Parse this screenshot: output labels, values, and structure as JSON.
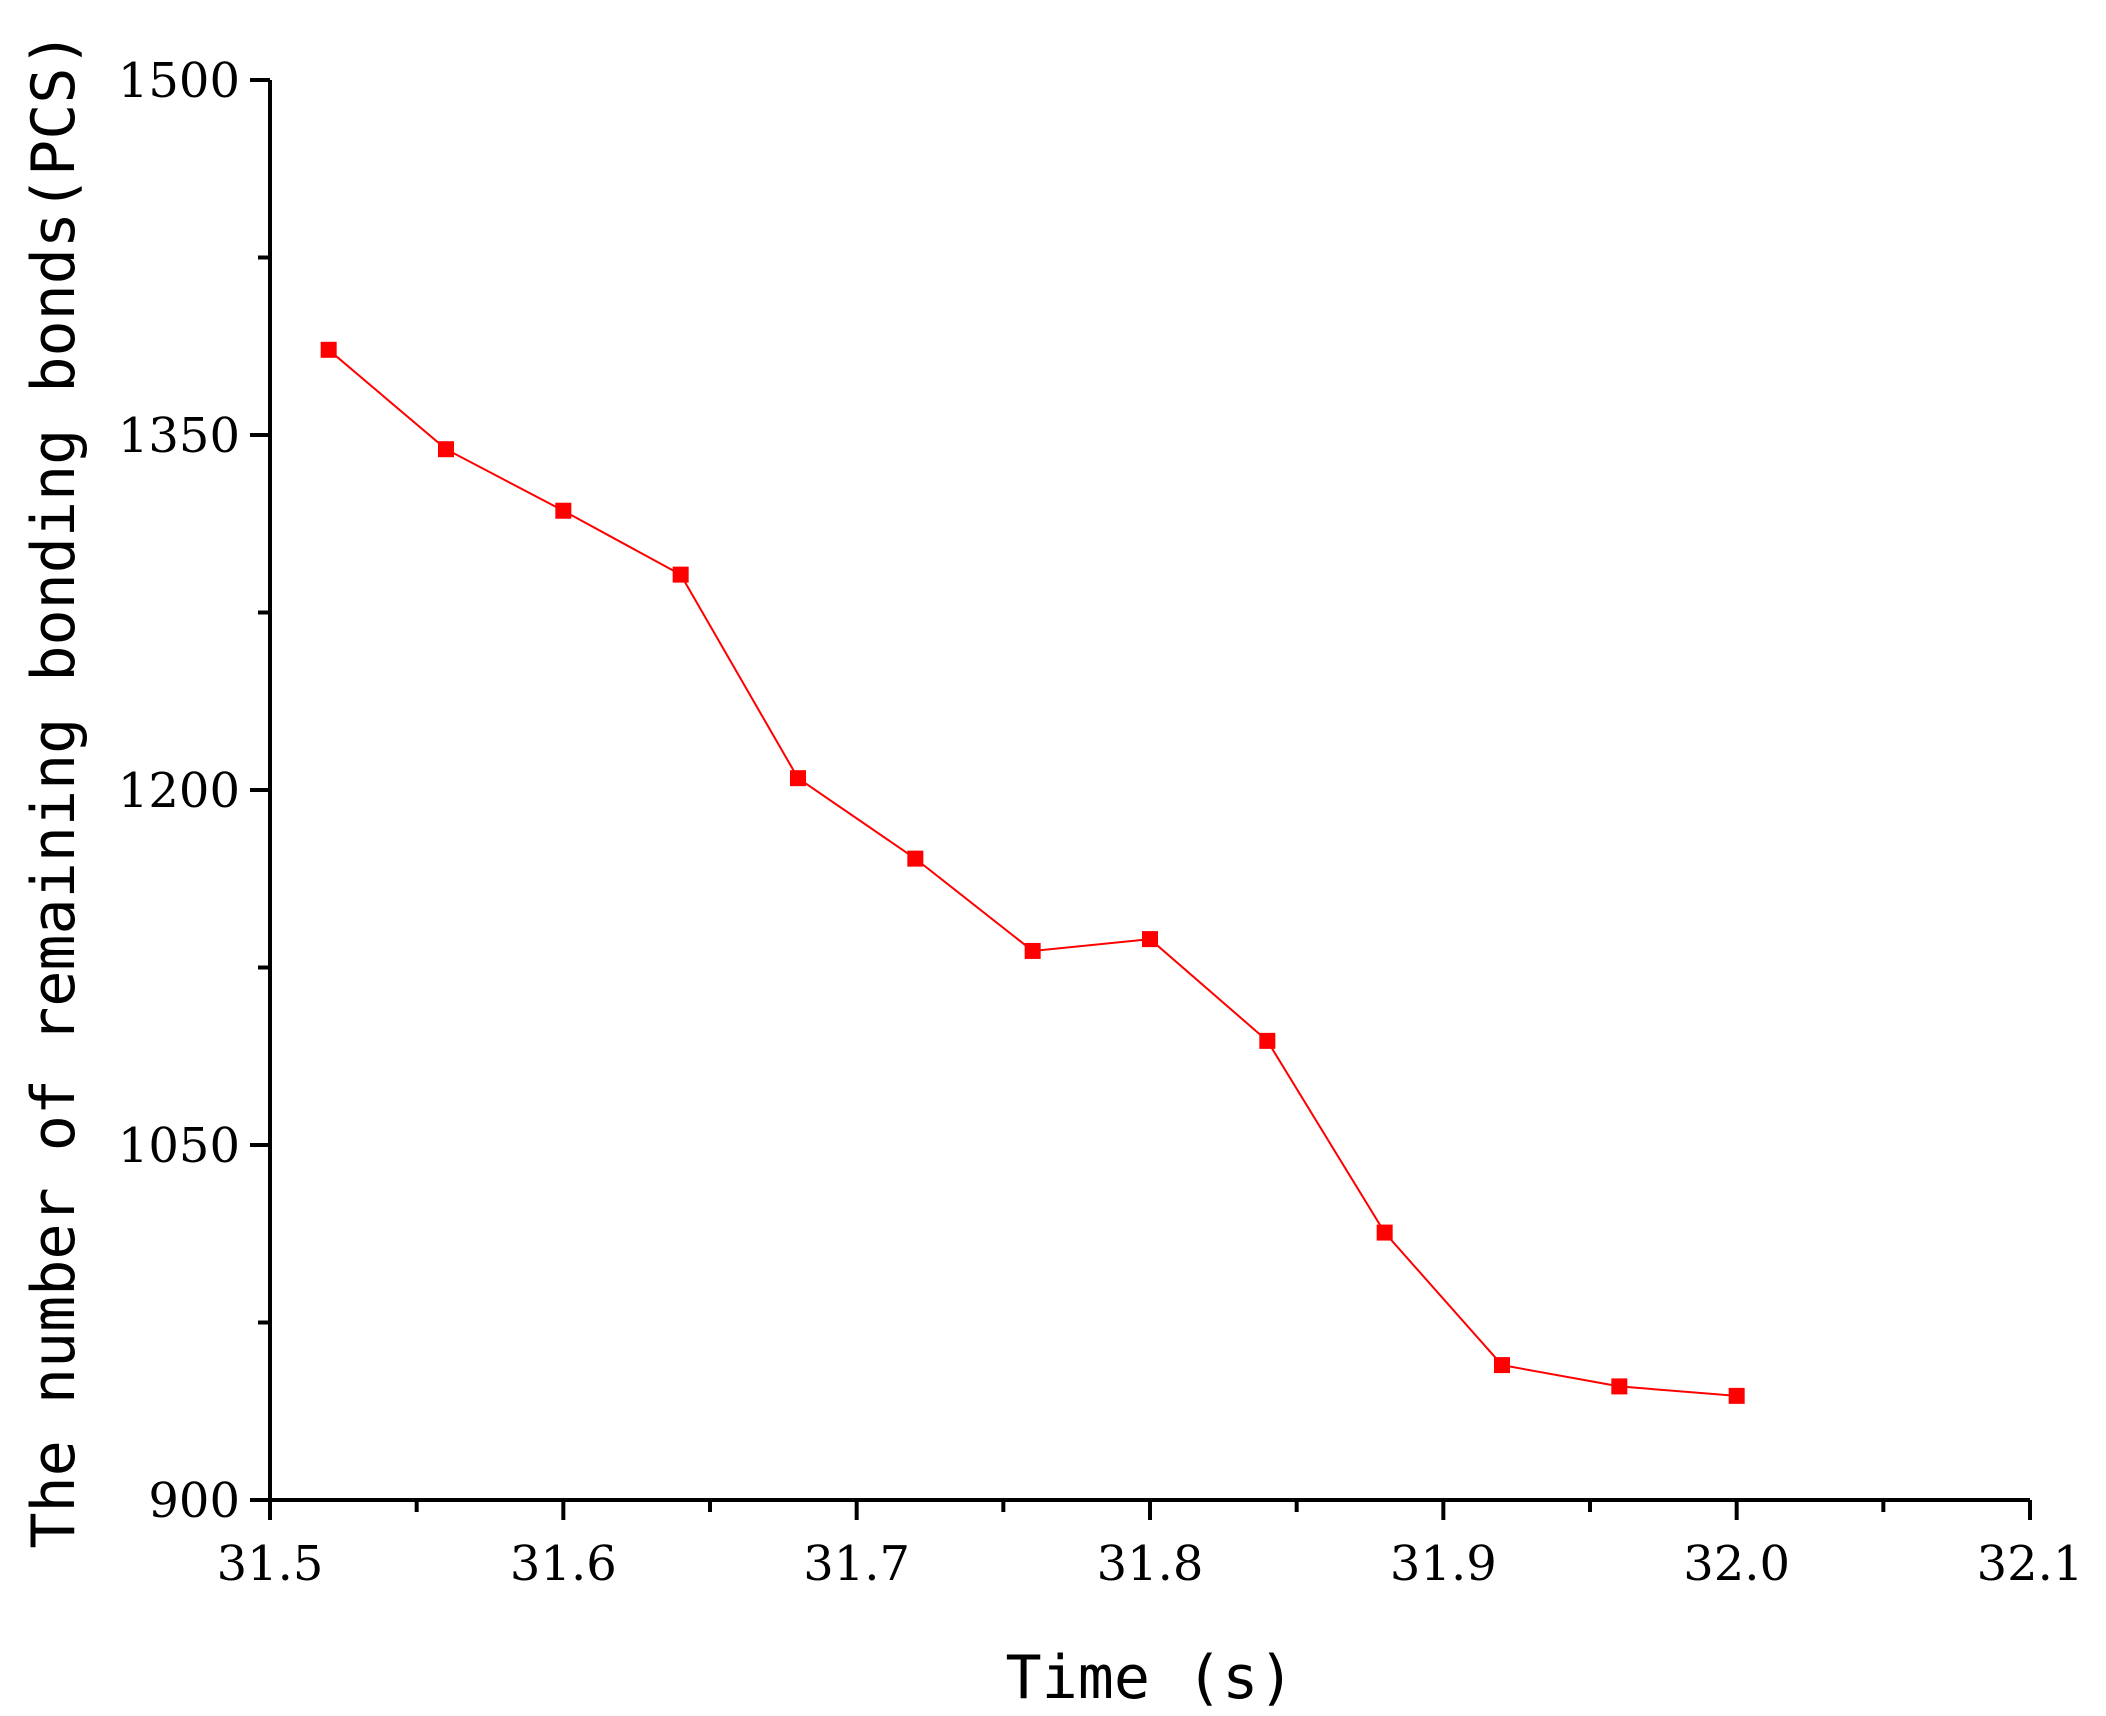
{
  "chart_data": {
    "type": "line",
    "xlabel": "Time (s)",
    "ylabel": "The number of remaining bonding bonds(PCS)",
    "xlim": [
      31.5,
      32.1
    ],
    "ylim": [
      900,
      1500
    ],
    "x_ticks": [
      "31.5",
      "31.6",
      "31.7",
      "31.8",
      "31.9",
      "32.0",
      "32.1"
    ],
    "y_ticks": [
      "900",
      "1050",
      "1200",
      "1350",
      "1500"
    ],
    "grid": false,
    "legend": "none",
    "series": [
      {
        "color": "#ff0000",
        "marker": "square",
        "x": [
          31.52,
          31.56,
          31.6,
          31.64,
          31.68,
          31.72,
          31.76,
          31.8,
          31.84,
          31.88,
          31.92,
          31.96,
          32.0
        ],
        "y": [
          1386,
          1344,
          1318,
          1291,
          1205,
          1171,
          1132,
          1137,
          1094,
          1013,
          957,
          948,
          944
        ]
      }
    ]
  }
}
